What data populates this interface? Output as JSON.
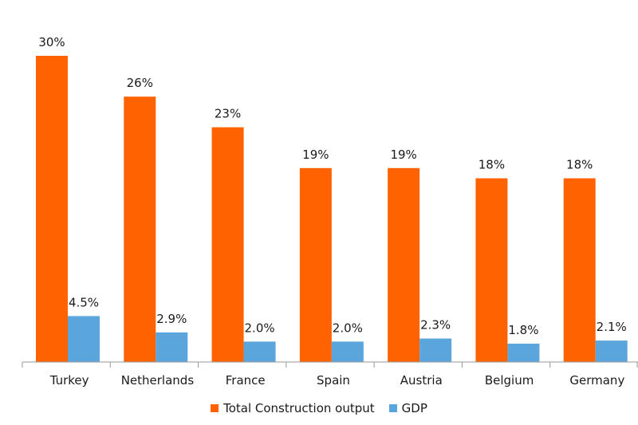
{
  "chart_data": {
    "type": "bar",
    "title": "",
    "xlabel": "",
    "ylabel": "",
    "ylim": [
      0,
      31
    ],
    "grid": false,
    "legend_position": "bottom",
    "categories": [
      "Turkey",
      "Netherlands",
      "France",
      "Spain",
      "Austria",
      "Belgium",
      "Germany"
    ],
    "series": [
      {
        "name": "Total Construction output",
        "color": "#ff6200",
        "values": [
          30,
          26,
          23,
          19,
          19,
          18,
          18
        ],
        "labels": [
          "30%",
          "26%",
          "23%",
          "19%",
          "19%",
          "18%",
          "18%"
        ]
      },
      {
        "name": "GDP",
        "color": "#5aa5dc",
        "values": [
          4.5,
          2.9,
          2.0,
          2.0,
          2.3,
          1.8,
          2.1
        ],
        "labels": [
          "4.5%",
          "2.9%",
          "2.0%",
          "2.0%",
          "2.3%",
          "1.8%",
          "2.1%"
        ]
      }
    ]
  }
}
